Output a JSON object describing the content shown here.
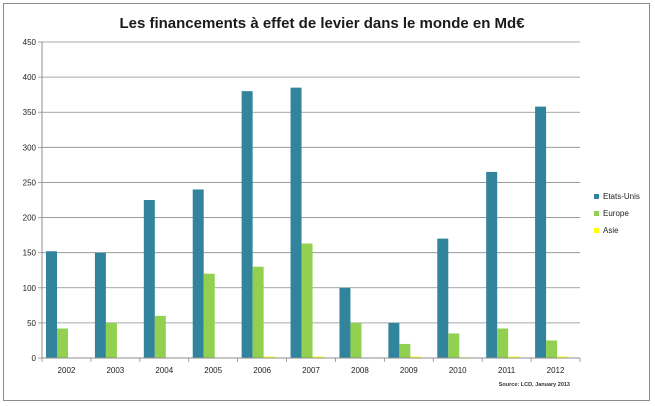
{
  "chart_data": {
    "type": "bar",
    "title": "Les financements  à effet de levier dans le monde en Md€",
    "categories": [
      "2002",
      "2003",
      "2004",
      "2005",
      "2006",
      "2007",
      "2008",
      "2009",
      "2010",
      "2011",
      "2012"
    ],
    "series": [
      {
        "name": "Etats-Unis",
        "color": "#31849b",
        "values": [
          152,
          150,
          225,
          240,
          380,
          385,
          100,
          50,
          170,
          265,
          358
        ]
      },
      {
        "name": "Europe",
        "color": "#92d050",
        "values": [
          42,
          50,
          60,
          120,
          130,
          163,
          50,
          20,
          35,
          42,
          25
        ]
      },
      {
        "name": "Asie",
        "color": "#ffff00",
        "values": [
          0,
          0,
          0,
          0,
          2,
          2,
          0,
          2,
          1,
          2,
          2
        ]
      }
    ],
    "yticks": [
      0,
      50,
      100,
      150,
      200,
      250,
      300,
      350,
      400,
      450
    ],
    "ylim": [
      0,
      450
    ],
    "grid": true,
    "legend_position": "right",
    "source": "Source: LCD, January 2013"
  }
}
